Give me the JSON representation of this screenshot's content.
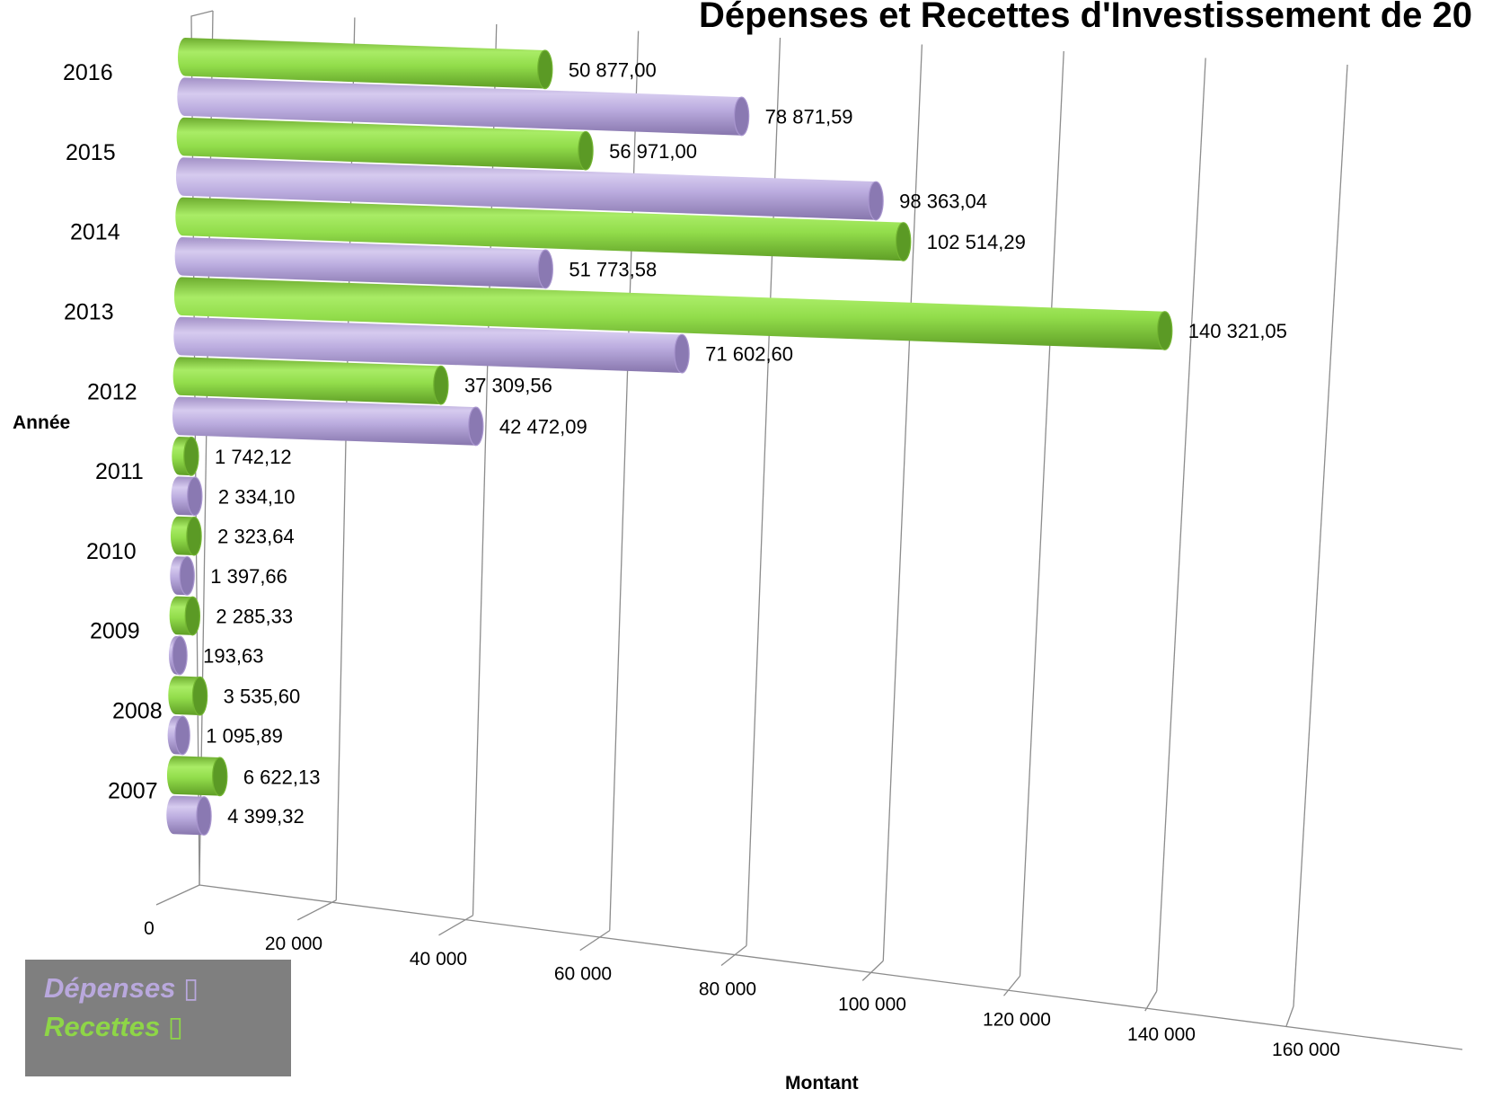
{
  "chart_data": {
    "type": "bar",
    "orientation": "horizontal",
    "style": "3d-cylinder",
    "title": "Dépenses et Recettes d'Investissement de 20",
    "xlabel": "Montant",
    "ylabel": "Année",
    "xlim": [
      0,
      160000
    ],
    "x_ticks": [
      "0",
      "20 000",
      "40 000",
      "60 000",
      "80 000",
      "100 000",
      "120 000",
      "140 000",
      "160 000"
    ],
    "categories": [
      "2016",
      "2015",
      "2014",
      "2013",
      "2012",
      "2011",
      "2010",
      "2009",
      "2008",
      "2007"
    ],
    "series": [
      {
        "name": "Dépenses",
        "color": "#b9a8dd",
        "values": [
          78871.59,
          98363.04,
          51773.58,
          71602.6,
          42472.09,
          2334.1,
          1397.66,
          193.63,
          1095.89,
          4399.32
        ],
        "labels": [
          "78 871,59",
          "98 363,04",
          "51 773,58",
          "71 602,60",
          "42 472,09",
          "2 334,10",
          "1 397,66",
          "193,63",
          "1 095,89",
          "4 399,32"
        ]
      },
      {
        "name": "Recettes",
        "color": "#8ed647",
        "values": [
          50877.0,
          56971.0,
          102514.29,
          140321.05,
          37309.56,
          1742.12,
          2323.64,
          2285.33,
          3535.6,
          6622.13
        ],
        "labels": [
          "50 877,00",
          "56 971,00",
          "102 514,29",
          "140 321,05",
          "37 309,56",
          "1 742,12",
          "2 323,64",
          "2 285,33",
          "3 535,60",
          "6 622,13"
        ]
      }
    ],
    "legend": {
      "position": "bottom-left",
      "background": "#7f7f7f",
      "entries": [
        "Dépenses",
        "Recettes"
      ],
      "markers": [
        "▯",
        "▯"
      ]
    },
    "gridlines": true
  }
}
